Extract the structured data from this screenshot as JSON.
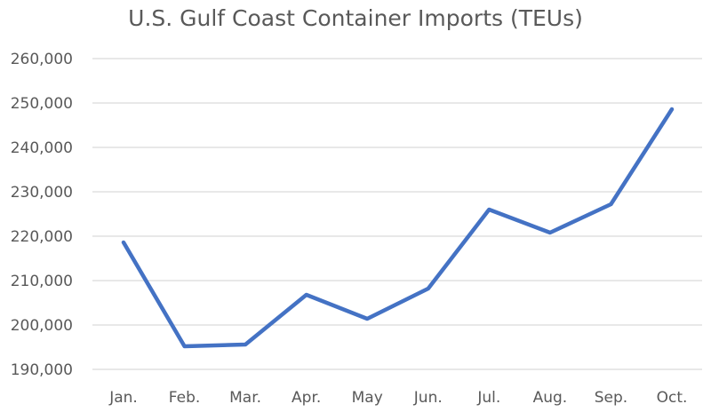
{
  "chart_data": {
    "type": "line",
    "title": "U.S. Gulf Coast Container Imports (TEUs)",
    "xlabel": "",
    "ylabel": "",
    "categories": [
      "Jan.",
      "Feb.",
      "Mar.",
      "Apr.",
      "May",
      "Jun.",
      "Jul.",
      "Aug.",
      "Sep.",
      "Oct."
    ],
    "series": [
      {
        "name": "Container Imports (TEUs)",
        "color": "#4472C4",
        "values": [
          218600,
          195200,
          195600,
          206800,
          201400,
          208200,
          226000,
          220800,
          227200,
          248600
        ]
      }
    ],
    "ylim": [
      190000,
      260000
    ],
    "yticks": [
      190000,
      200000,
      210000,
      220000,
      230000,
      240000,
      250000,
      260000
    ],
    "ytick_labels": [
      "190,000",
      "200,000",
      "210,000",
      "220,000",
      "230,000",
      "240,000",
      "250,000",
      "260,000"
    ],
    "grid": true,
    "legend": "none"
  },
  "colors": {
    "line": "#4472C4",
    "grid": "#D9D9D9",
    "text": "#595959"
  }
}
